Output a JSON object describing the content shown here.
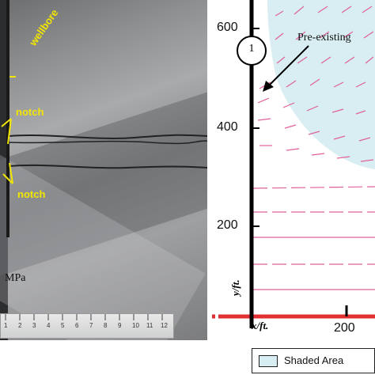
{
  "photo": {
    "labels": {
      "wellbore": "wellbore",
      "notch_top": "notch",
      "notch_bottom": "notch"
    },
    "unit_label": "MPa",
    "ruler_numbers": [
      "1",
      "2",
      "3",
      "4",
      "5",
      "6",
      "7",
      "8",
      "9",
      "10",
      "11",
      "12"
    ]
  },
  "plot": {
    "y_ticks": [
      "600",
      "400",
      "200"
    ],
    "x_tick": "200",
    "y_axis_label": "y/ft.",
    "x_axis_label": "x/ft.",
    "circle_marker": "1",
    "annotation": "Pre-existing",
    "colors": {
      "shaded_area": "#d9eef3",
      "field_lines": "#e0609a",
      "fracture_line": "#e23030",
      "axis": "#000000"
    }
  },
  "legend": {
    "shaded_label": "Shaded Area"
  }
}
